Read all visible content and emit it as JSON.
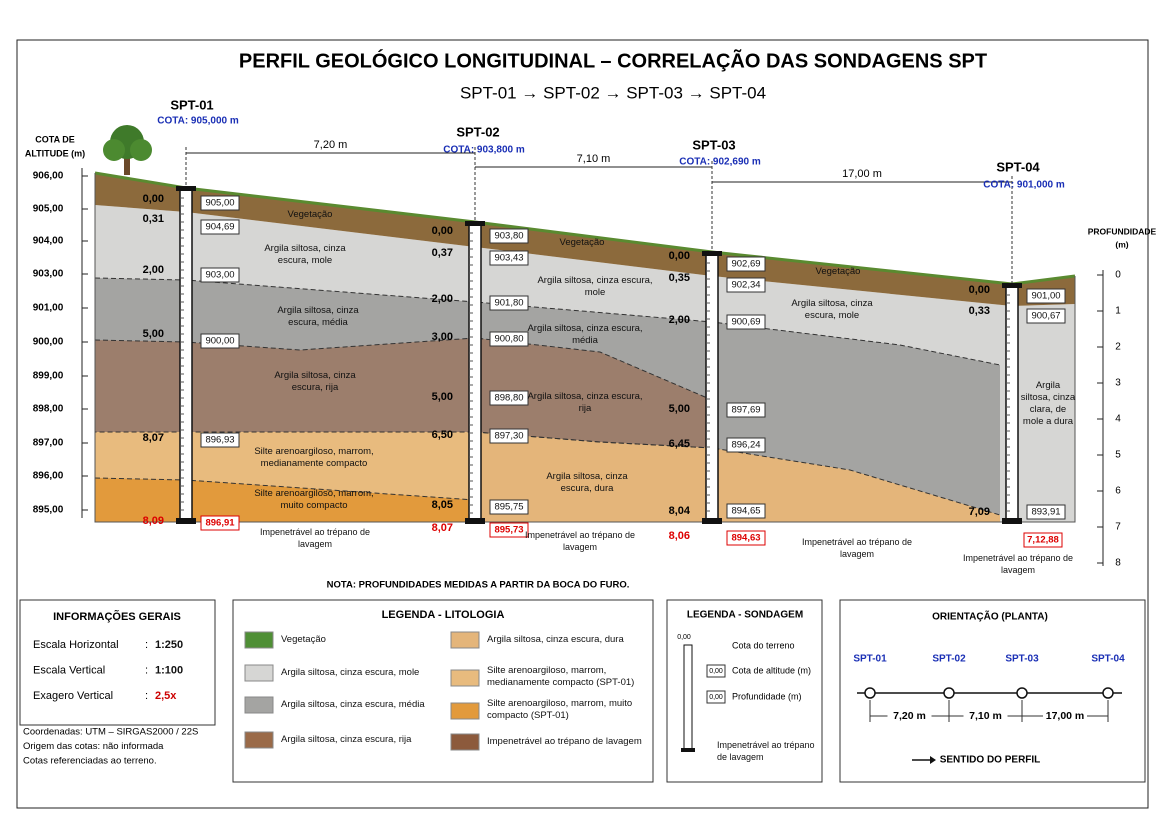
{
  "title": "PERFIL GEOLÓGICO LONGITUDINAL – CORRELAÇÃO DAS SONDAGENS SPT",
  "subtitle": "SPT-01 → SPT-02 → SPT-03 → SPT-04",
  "left_axis": {
    "label": [
      "COTA DE",
      "ALTITUDE (m)"
    ],
    "ticks": [
      "906,00",
      "905,00",
      "904,00",
      "903,00",
      "901,00",
      "900,00",
      "899,00",
      "898,00",
      "897,00",
      "896,00",
      "895,00"
    ]
  },
  "right_axis": {
    "label": [
      "PROFUNDIDADE",
      "(m)"
    ],
    "ticks": [
      "0",
      "1",
      "2",
      "3",
      "4",
      "5",
      "6",
      "7",
      "8"
    ]
  },
  "distances": [
    "7,20 m",
    "7,10 m",
    "17,00 m"
  ],
  "boreholes": [
    {
      "name": "SPT-01",
      "cota": "COTA: 905,000 m",
      "depths": [
        "0,00",
        "0,31",
        "2,00",
        "5,00",
        "8,07"
      ],
      "elevations": [
        "905,00",
        "904,69",
        "903,00",
        "900,00",
        "896,93"
      ],
      "final_depth": "8,09",
      "final_elevation": "896,91",
      "note": "Impenetrável ao trépano de lavagem"
    },
    {
      "name": "SPT-02",
      "cota": "COTA: 903,800 m",
      "depths": [
        "0,00",
        "0,37",
        "2,00",
        "3,00",
        "5,00",
        "6,50",
        "8,05"
      ],
      "elevations": [
        "903,80",
        "903,43",
        "901,80",
        "900,80",
        "898,80",
        "897,30",
        "895,75"
      ],
      "final_depth": "8,07",
      "final_elevation": "895,73",
      "note": "Impenetrável ao trépano de lavagem"
    },
    {
      "name": "SPT-03",
      "cota": "COTA: 902,690 m",
      "depths": [
        "0,00",
        "0,35",
        "2,00",
        "5,00",
        "6,45",
        "8,04"
      ],
      "elevations": [
        "902,69",
        "902,34",
        "900,69",
        "897,69",
        "896,24",
        "894,65"
      ],
      "final_depth": "8,06",
      "final_elevation": "894,63",
      "note": "Impenetrável ao trépano de lavagem"
    },
    {
      "name": "SPT-04",
      "cota": "COTA: 901,000 m",
      "depths": [
        "0,00",
        "0,33",
        "7,09"
      ],
      "elevations": [
        "901,00",
        "900,67",
        "893,91"
      ],
      "final_depth": "7,12,88",
      "note": "Impenetrável ao trépano de lavagem"
    }
  ],
  "layer_labels": [
    "Vegetação",
    "Vegetação",
    "Vegetação",
    "Argila siltosa, cinza escura, mole",
    "Argila siltosa, cinza escura, mole",
    "Argila siltosa, cinza escura, mole",
    "Argila siltosa, cinza escura, média",
    "Argila siltosa, cinza escura, média",
    "Argila siltosa, cinza escura, rija",
    "Argila siltosa, cinza escura, rija",
    "Silte arenoargiloso, marrom, medianamente compacto",
    "Silte arenoargiloso, marrom, muito compacto",
    "Argila siltosa, cinza escura, dura",
    "Argila siltosa, cinza clara, de mole a dura"
  ],
  "note": "NOTA: PROFUNDIDADES MEDIDAS A PARTIR DA BOCA DO FURO.",
  "info": {
    "title": "INFORMAÇÕES GERAIS",
    "rows": [
      {
        "label": "Escala Horizontal",
        "sep": ":",
        "value": "1:250"
      },
      {
        "label": "Escala Vertical",
        "sep": ":",
        "value": "1:100"
      },
      {
        "label": "Exagero Vertical",
        "sep": ":",
        "value": "2,5x"
      }
    ],
    "footnotes": [
      "Coordenadas: UTM – SIRGAS2000 / 22S",
      "Origem das cotas: não informada",
      "Cotas referenciadas ao terreno."
    ]
  },
  "legend_lithology": {
    "title": "LEGENDA - LITOLOGIA",
    "items": [
      "Vegetação",
      "Argila siltosa, cinza escura, mole",
      "Argila siltosa, cinza escura, média",
      "Argila siltosa, cinza escura, rija",
      "Argila siltosa, cinza escura, dura",
      "Silte arenoargiloso, marrom, medianamente compacto (SPT-01)",
      "Silte arenoargiloso, marrom, muito compacto (SPT-01)",
      "Impenetrável ao trépano de lavagem"
    ]
  },
  "legend_borehole": {
    "title": "LEGENDA - SONDAGEM",
    "top_sample": "0,00",
    "elev_sample": "0,00",
    "depth_sample": "0,00",
    "items": [
      "Cota do terreno",
      "Cota de altitude (m)",
      "Profundidade (m)",
      "Impenetrável ao trépano de lavagem"
    ]
  },
  "orientation": {
    "title": "ORIENTAÇÃO (PLANTA)",
    "names": [
      "SPT-01",
      "SPT-02",
      "SPT-03",
      "SPT-04"
    ],
    "distances": [
      "7,20 m",
      "7,10 m",
      "17,00 m"
    ],
    "direction": "SENTIDO DO PERFIL"
  }
}
